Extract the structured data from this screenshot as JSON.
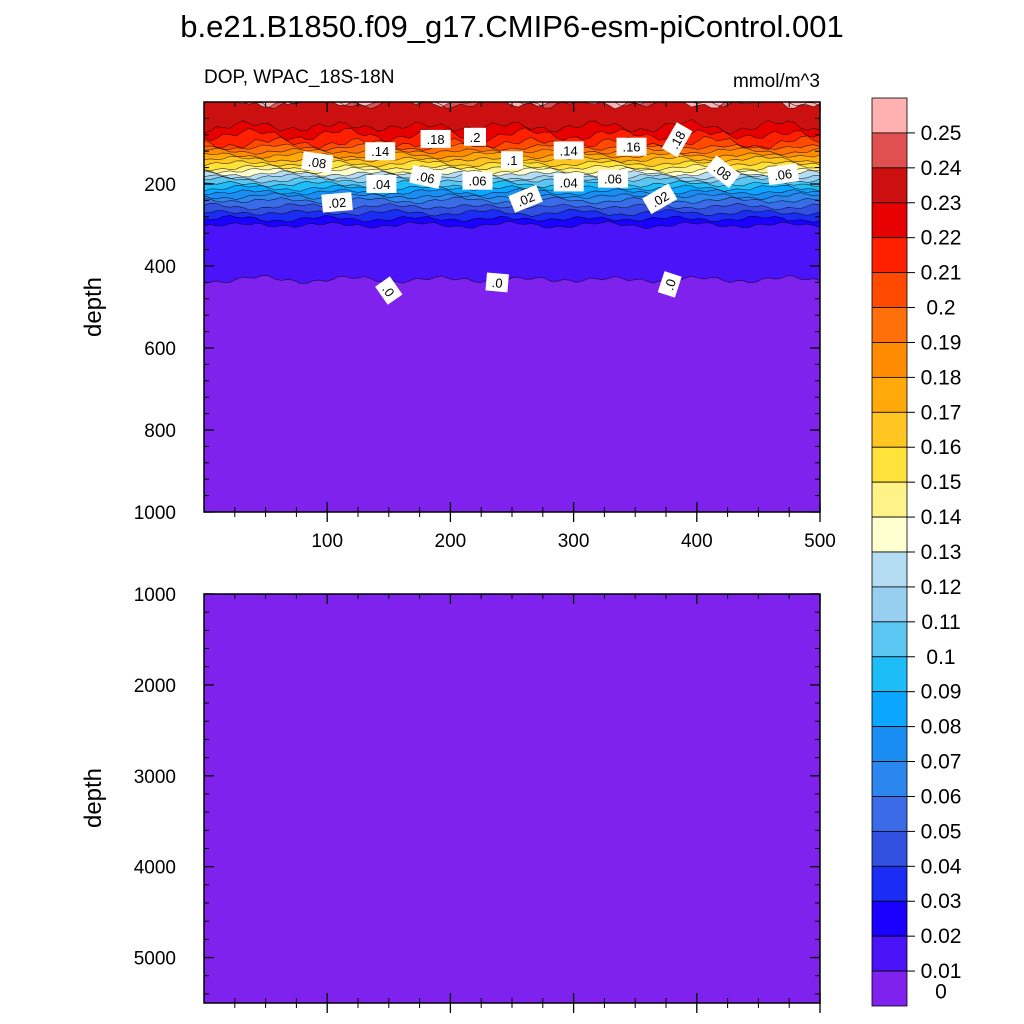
{
  "title": "b.e21.B1850.f09_g17.CMIP6-esm-piControl.001",
  "subtitle_left": "DOP, WPAC_18S-18N",
  "units": "mmol/m^3",
  "colors": {
    "background": "#7f22ee",
    "line": "#000000",
    "levels": [
      "#7f22ee",
      "#4b14f8",
      "#1a00ff",
      "#1b2cf5",
      "#3150e0",
      "#3a6ce8",
      "#2b86ee",
      "#1a8df3",
      "#0aa6ff",
      "#1dbdf8",
      "#5cc6f2",
      "#96cfef",
      "#b4ddf3",
      "#ffffd0",
      "#fff388",
      "#ffe23a",
      "#ffc520",
      "#ffaa0a",
      "#ff8c00",
      "#ff6f0a",
      "#ff4a00",
      "#ff2000",
      "#e60000",
      "#cc1010",
      "#e05050",
      "#ffb0b0"
    ]
  },
  "chart_data": {
    "type": "contour",
    "variable": "DOP",
    "region": "WPAC_18S-18N",
    "units": "mmol/m^3",
    "colorbar": {
      "labels": [
        "0.25",
        "0.24",
        "0.23",
        "0.22",
        "0.21",
        "0.2",
        "0.19",
        "0.18",
        "0.17",
        "0.16",
        "0.15",
        "0.14",
        "0.13",
        "0.12",
        "0.11",
        "0.1",
        "0.09",
        "0.08",
        "0.07",
        "0.06",
        "0.05",
        "0.04",
        "0.03",
        "0.02",
        "0.01",
        "0"
      ]
    },
    "panels": [
      {
        "name": "upper",
        "ylabel": "depth",
        "xlim": [
          0,
          500
        ],
        "ylim": [
          0,
          1000
        ],
        "x_ticks": [
          "100",
          "200",
          "300",
          "400",
          "500"
        ],
        "y_ticks": [
          "200",
          "400",
          "600",
          "800",
          "1000"
        ],
        "profile_depths": [
          0,
          60,
          100,
          120,
          140,
          160,
          175,
          190,
          200,
          210,
          220,
          230,
          240,
          255,
          270,
          285,
          300,
          440,
          5500
        ],
        "profile_values": [
          0.23,
          0.22,
          0.2,
          0.18,
          0.16,
          0.14,
          0.12,
          0.1,
          0.09,
          0.08,
          0.07,
          0.06,
          0.05,
          0.04,
          0.03,
          0.02,
          0.01,
          0.0,
          0.0
        ],
        "contour_labels": [
          {
            "text": ".14",
            "x": 143,
            "y": 120,
            "angle": 0
          },
          {
            "text": ".18",
            "x": 188,
            "y": 90,
            "angle": 0
          },
          {
            "text": ".2",
            "x": 220,
            "y": 85,
            "angle": 0
          },
          {
            "text": ".08",
            "x": 92,
            "y": 147,
            "angle": 8
          },
          {
            "text": ".04",
            "x": 144,
            "y": 200,
            "angle": 0
          },
          {
            "text": ".06",
            "x": 180,
            "y": 183,
            "angle": 12
          },
          {
            "text": ".06",
            "x": 222,
            "y": 192,
            "angle": 0
          },
          {
            "text": ".1",
            "x": 250,
            "y": 142,
            "angle": 0
          },
          {
            "text": ".14",
            "x": 296,
            "y": 118,
            "angle": 0
          },
          {
            "text": ".16",
            "x": 347,
            "y": 109,
            "angle": 0
          },
          {
            "text": ".18",
            "x": 384,
            "y": 92,
            "angle": -60
          },
          {
            "text": ".08",
            "x": 421,
            "y": 170,
            "angle": 38
          },
          {
            "text": ".06",
            "x": 470,
            "y": 176,
            "angle": -8
          },
          {
            "text": ".02",
            "x": 108,
            "y": 245,
            "angle": -5
          },
          {
            "text": ".04",
            "x": 296,
            "y": 196,
            "angle": 0
          },
          {
            "text": ".06",
            "x": 332,
            "y": 187,
            "angle": 0
          },
          {
            "text": ".02",
            "x": 261,
            "y": 236,
            "angle": -22
          },
          {
            "text": ".02",
            "x": 370,
            "y": 236,
            "angle": -30
          },
          {
            "text": ".0",
            "x": 150,
            "y": 460,
            "angle": 55
          },
          {
            "text": ".0",
            "x": 238,
            "y": 440,
            "angle": 5
          },
          {
            "text": ".0",
            "x": 378,
            "y": 445,
            "angle": -72
          }
        ]
      },
      {
        "name": "lower",
        "ylabel": "depth",
        "xlim": [
          0,
          500
        ],
        "ylim": [
          1000,
          5500
        ],
        "y_ticks": [
          "1000",
          "2000",
          "3000",
          "4000",
          "5000"
        ],
        "fill_value": 0.0
      }
    ]
  }
}
